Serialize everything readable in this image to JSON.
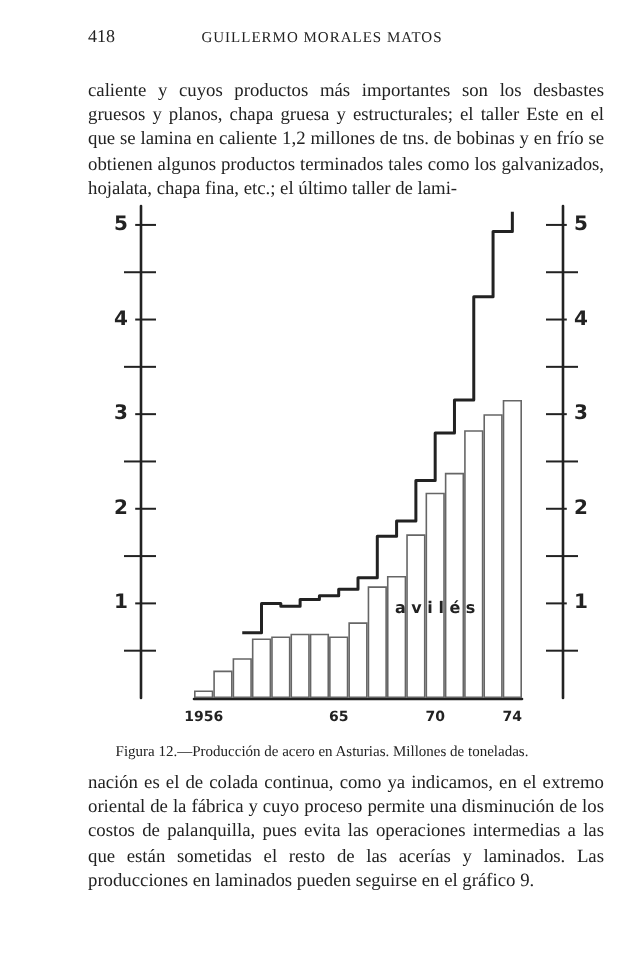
{
  "chart_data": {
    "type": "bar",
    "title": "Figura 12.—Producción de acero en Asturias. Millones de toneladas.",
    "categories": [
      "1956",
      null,
      null,
      null,
      null,
      null,
      null,
      "65",
      null,
      null,
      null,
      null,
      "70",
      null,
      null,
      null,
      "74"
    ],
    "series": [
      {
        "name": "a v i l é s",
        "color": "#ffffff",
        "values": [
          0.08,
          0.29,
          0.42,
          0.63,
          0.65,
          0.68,
          0.68,
          0.65,
          0.8,
          1.18,
          1.29,
          1.73,
          2.17,
          2.38,
          2.83,
          3.0,
          3.15
        ]
      },
      {
        "type": "step",
        "color": "#222222",
        "values": [
          null,
          null,
          0.69,
          1.0,
          0.97,
          1.04,
          1.08,
          1.15,
          1.27,
          1.71,
          1.87,
          2.3,
          2.8,
          3.15,
          4.24,
          4.93,
          5.14
        ]
      }
    ],
    "ylim": [
      0,
      5.2
    ],
    "yticks": [
      {
        "value": 0.5,
        "label": null
      },
      1,
      {
        "value": 1.5,
        "label": null
      },
      2,
      {
        "value": 2.5,
        "label": null
      },
      3,
      {
        "value": 3.5,
        "label": null
      },
      4,
      {
        "value": 4.5,
        "label": null
      },
      5
    ],
    "y2lim": [
      0,
      5.2
    ],
    "y2ticks": [
      {
        "value": 0.5,
        "label": null
      },
      1,
      {
        "value": 1.5,
        "label": null
      },
      2,
      {
        "value": 2.5,
        "label": null
      },
      3,
      {
        "value": 3.5,
        "label": null
      },
      4,
      {
        "value": 4.5,
        "label": null
      },
      5
    ],
    "grid": false,
    "annotations": [
      "418",
      "GUILLERMO MORALES MATOS",
      "caliente y cuyos productos más importantes son los desbastes gruesos y planos, chapa gruesa y estructurales; el taller Este en el que se lamina en caliente 1,2 millones de tns. de bobinas y en frío se obtienen algunos productos terminados tales como los galvanizados, hojalata, chapa fina, etc.; el último taller de lami-",
      "nación es el de colada continua, como ya indicamos, en el extremo oriental de la fábrica y cuyo proceso permite una disminución de los costos de palanquilla, pues evita las operaciones intermedias a las que están sometidas el resto de las acerías y laminados. Las producciones en laminados pueden seguirse en el gráfico 9."
    ]
  }
}
